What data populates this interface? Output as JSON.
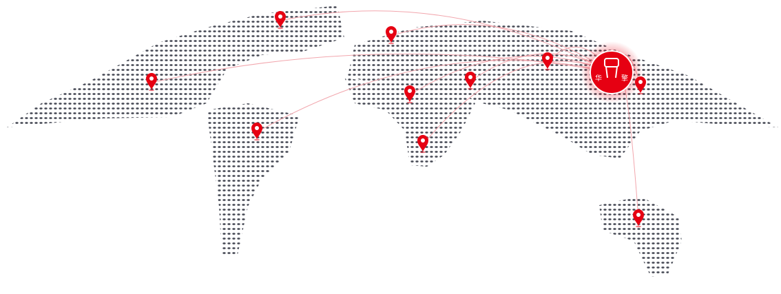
{
  "map": {
    "accent_color": "#e60012",
    "dot_color": "#4a4d58",
    "arc_color": "#f2a6ad",
    "hub": {
      "name": "headquarters",
      "logo_text": [
        "华",
        "擎"
      ]
    },
    "pins": [
      "north-america-north",
      "europe-west",
      "north-america",
      "south-america",
      "africa-west",
      "middle-east",
      "africa-south",
      "central-asia",
      "east-asia",
      "australia"
    ]
  }
}
